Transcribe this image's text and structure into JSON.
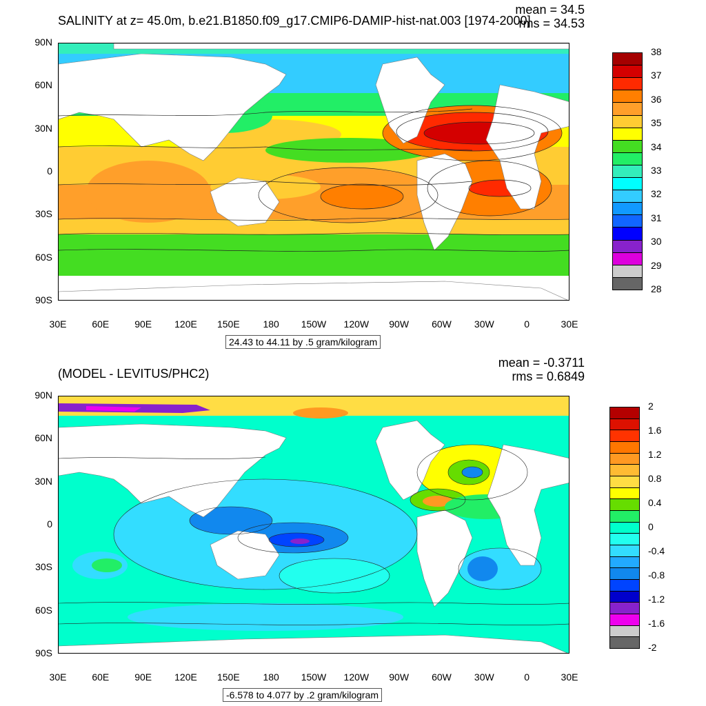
{
  "panels": [
    {
      "id": "top",
      "title": "SALINITY at z=  45.0m, b.e21.B1850.f09_g17.CMIP6-DAMIP-hist-nat.003 [1974-2000]",
      "stats": [
        "mean = 34.5",
        "rms = 34.53"
      ],
      "subtitle": "24.43 to 44.11 by .5 gram/kilogram",
      "y_ticks": [
        "90N",
        "60N",
        "30N",
        "0",
        "30S",
        "60S",
        "90S"
      ],
      "x_ticks": [
        "30E",
        "60E",
        "90E",
        "120E",
        "150E",
        "180",
        "150W",
        "120W",
        "90W",
        "60W",
        "30W",
        "0",
        "30E"
      ],
      "colorbar": {
        "labels": [
          "38",
          "37",
          "36",
          "35",
          "34",
          "33",
          "32",
          "31",
          "30",
          "29",
          "28"
        ],
        "colors": [
          "#a50000",
          "#d40000",
          "#ff2a00",
          "#ff7f00",
          "#ff9f2a",
          "#ffcc33",
          "#ffff00",
          "#44dd22",
          "#22ee66",
          "#33eebb",
          "#00ffff",
          "#33ccff",
          "#1199ff",
          "#1166ff",
          "#0000ff",
          "#8822cc",
          "#dd00dd",
          "#cccccc",
          "#666666"
        ]
      }
    },
    {
      "id": "bottom",
      "title": "(MODEL - LEVITUS/PHC2)",
      "stats": [
        "mean = -0.3711",
        "rms = 0.6849"
      ],
      "subtitle": "-6.578 to 4.077 by .2 gram/kilogram",
      "y_ticks": [
        "90N",
        "60N",
        "30N",
        "0",
        "30S",
        "60S",
        "90S"
      ],
      "x_ticks": [
        "30E",
        "60E",
        "90E",
        "120E",
        "150E",
        "180",
        "150W",
        "120W",
        "90W",
        "60W",
        "30W",
        "0",
        "30E"
      ],
      "colorbar": {
        "labels": [
          "2",
          "1.6",
          "1.2",
          "0.8",
          "0.4",
          "0",
          "-0.4",
          "-0.8",
          "-1.2",
          "-1.6",
          "-2"
        ],
        "colors": [
          "#b40000",
          "#dd1100",
          "#ff3300",
          "#ff7700",
          "#ff9922",
          "#ffbb33",
          "#ffdd44",
          "#ffff00",
          "#66dd00",
          "#22ee66",
          "#00ffcc",
          "#22ffee",
          "#33ddff",
          "#22aaff",
          "#1188ee",
          "#0044ff",
          "#0000cc",
          "#8822cc",
          "#ee00ee",
          "#cccccc",
          "#666666"
        ]
      }
    }
  ]
}
